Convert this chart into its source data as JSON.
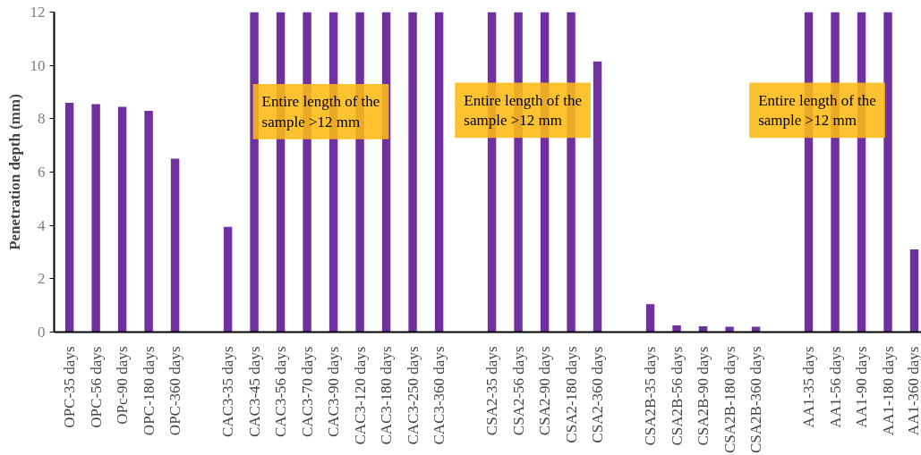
{
  "chart_data": {
    "type": "bar",
    "ylabel": "Penetration depth (mm)",
    "categories": [
      "OPC-35 days",
      "OPC-56 days",
      "OPc-90 days",
      "OPC-180 days",
      "OPC-360 days",
      null,
      "CAC3-35 days",
      "CAC3-45 days",
      "CAC3-56 days",
      "CAC3-70 days",
      "CAC3-90 days",
      "CAC3-120 days",
      "CAC3-180 days",
      "CAC3-250 days",
      "CAC3-360 days",
      null,
      "CSA2-35 days",
      "CSA2-56 days",
      "CSA2-90 days",
      "CSA2-180 days",
      "CSA2-360 days",
      null,
      "CSA2B-35 days",
      "CSA2B-56 days",
      "CSA2B-90 days",
      "CSA2B-180 days",
      "CSA2B-360 days",
      null,
      "AA1-35 days",
      "AA1-56 days",
      "AA1-90 days",
      "AA1-180 days",
      "AA1-360 days"
    ],
    "values": [
      8.6,
      8.55,
      8.45,
      8.3,
      6.5,
      null,
      3.95,
      12,
      12,
      12,
      12,
      12,
      12,
      12,
      12,
      null,
      12,
      12,
      12,
      12,
      10.15,
      null,
      1.05,
      0.25,
      0.22,
      0.2,
      0.2,
      null,
      12,
      12,
      12,
      12,
      3.1
    ],
    "color": "#7030a0",
    "ylim": [
      0,
      12
    ],
    "yticks": [
      0,
      2,
      4,
      6,
      8,
      10,
      12
    ],
    "grid": false,
    "annotations": [
      "Entire length of the\nsample  >12 mm",
      "Entire length of the\nsample  >12 mm",
      "Entire length of the\nsample  >12 mm"
    ]
  }
}
